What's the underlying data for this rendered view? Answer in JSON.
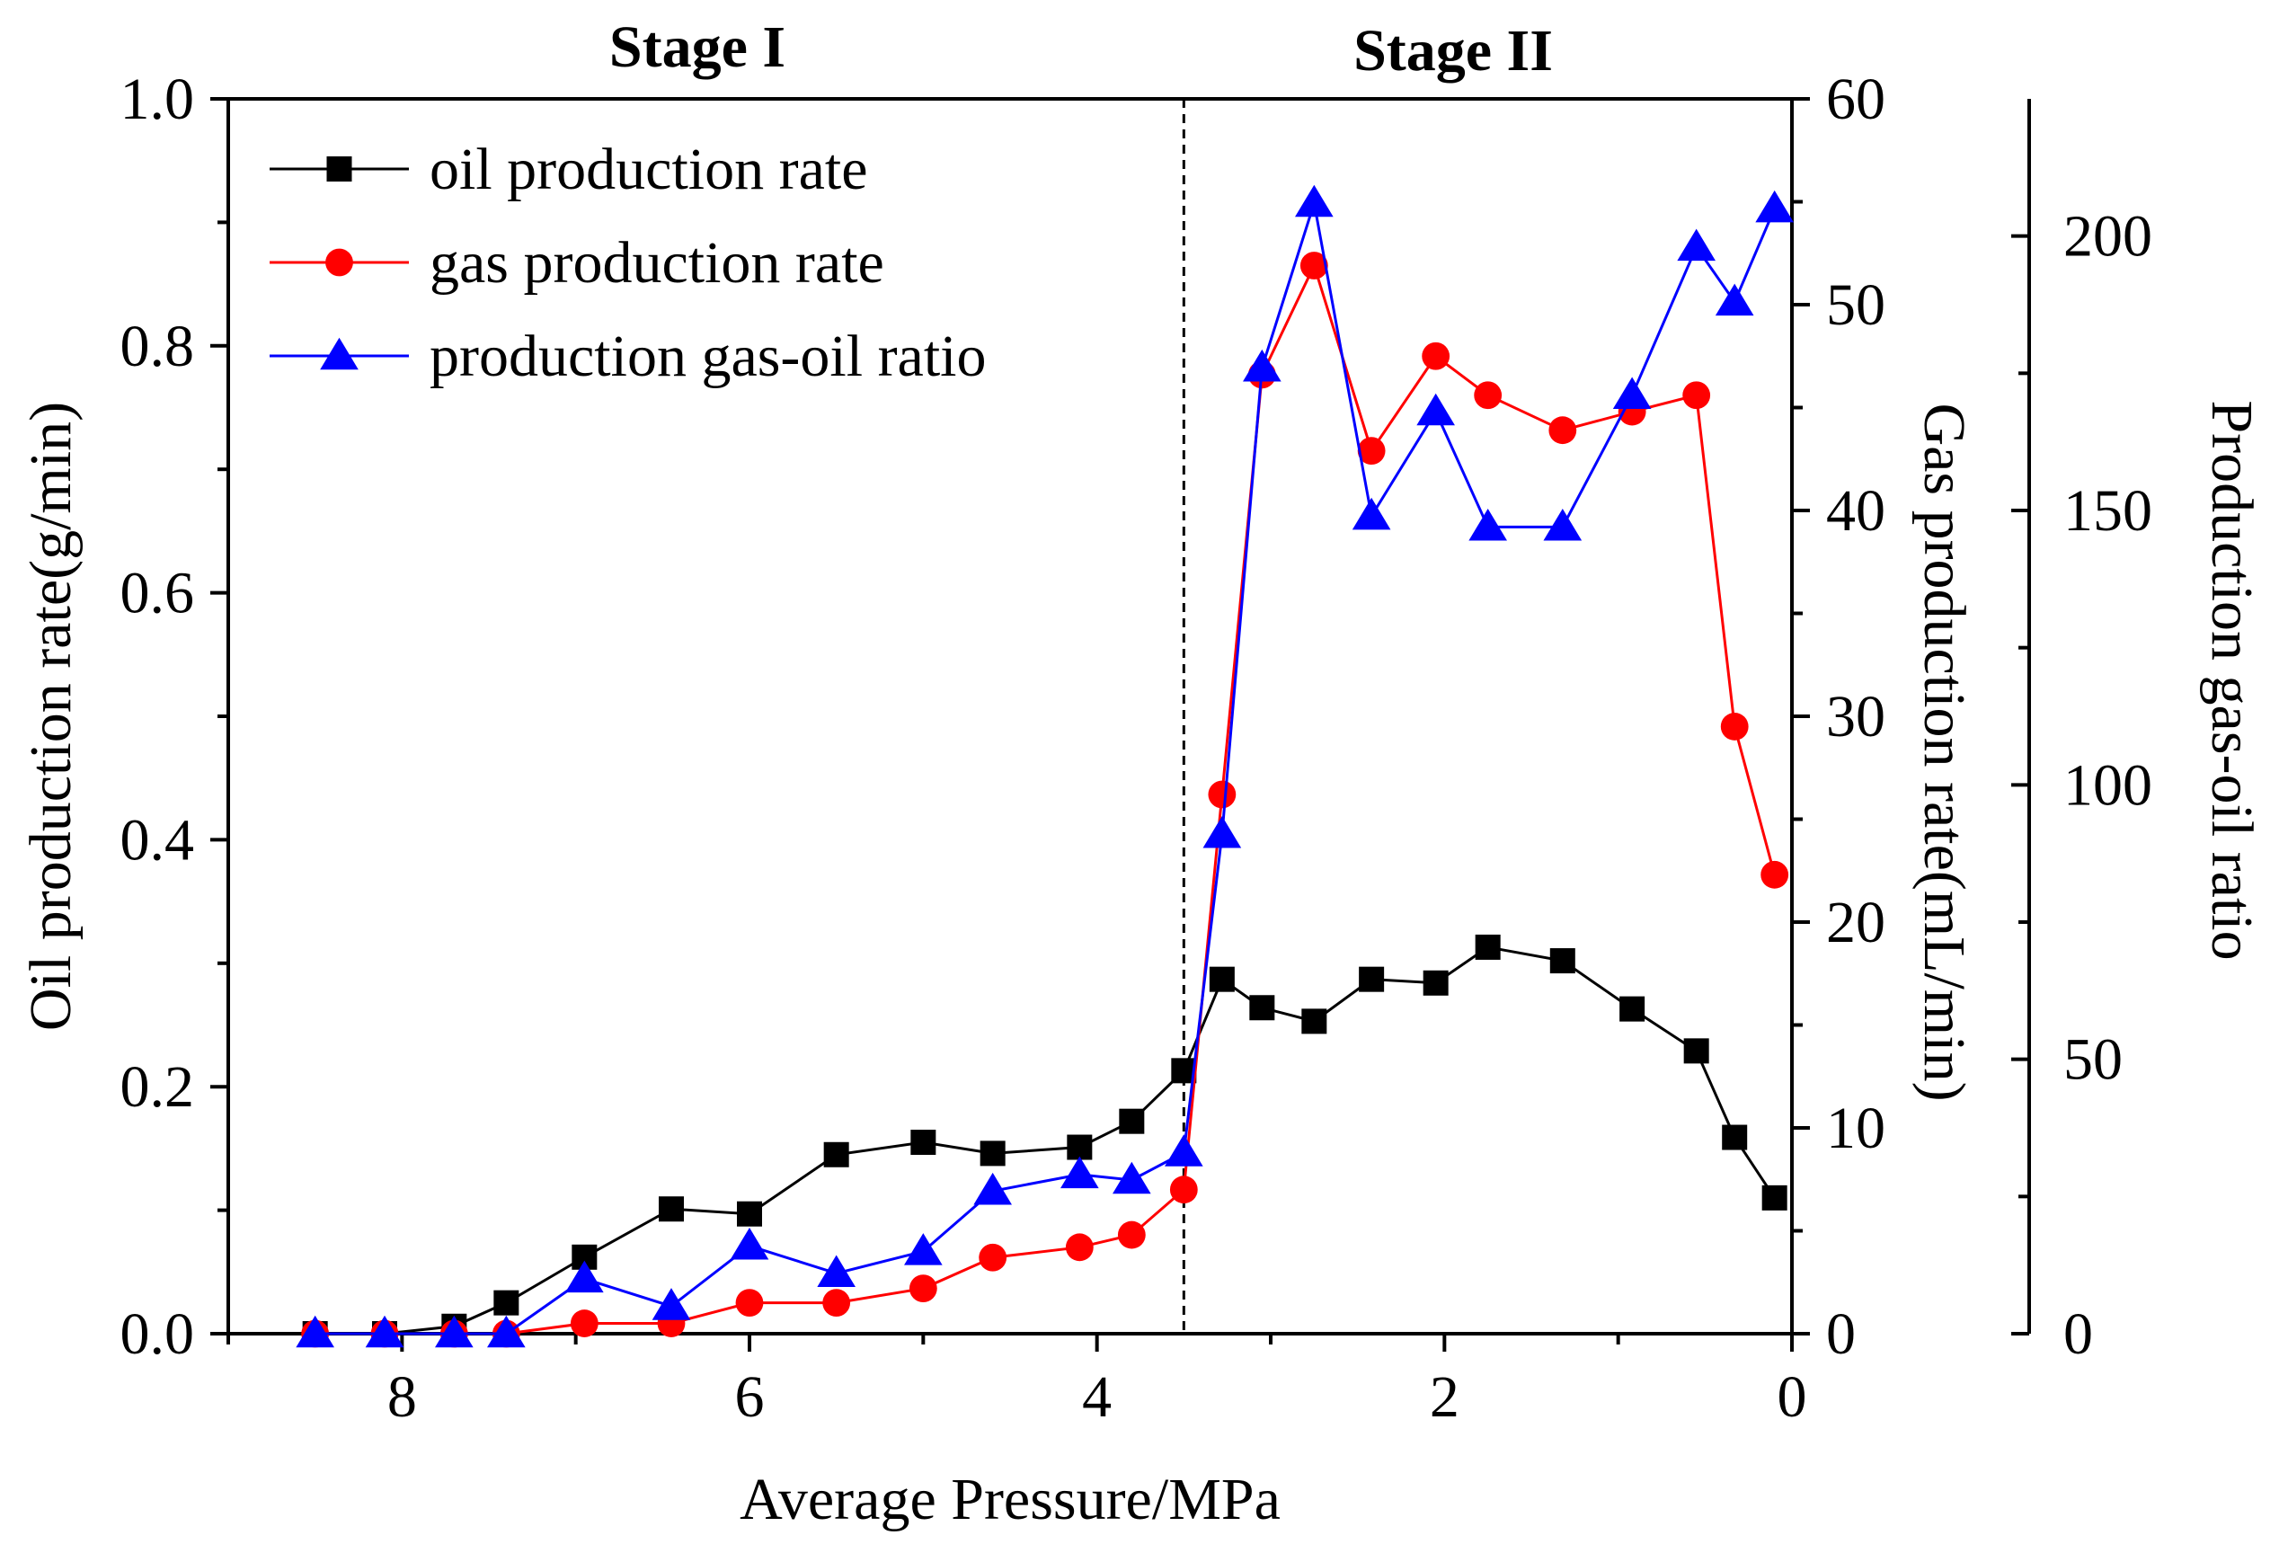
{
  "chart_data": {
    "type": "line",
    "stage_labels": [
      "Stage I",
      "Stage II"
    ],
    "stage_divider_x": 3.5,
    "xlabel": "Average Pressure/MPa",
    "x_reversed": true,
    "xlim": [
      9,
      0
    ],
    "x_ticks": [
      8,
      6,
      4,
      2,
      0
    ],
    "axes": {
      "left": {
        "label": "Oil production rate(g/min)",
        "lim": [
          0.0,
          1.0
        ],
        "ticks": [
          "0.0",
          "0.2",
          "0.4",
          "0.6",
          "0.8",
          "1.0"
        ]
      },
      "right_inner": {
        "label": "Gas production rate(mL/min)",
        "lim": [
          0,
          60
        ],
        "ticks": [
          "0",
          "10",
          "20",
          "30",
          "40",
          "50",
          "60"
        ]
      },
      "right_outer": {
        "label": "Production gas-oil ratio",
        "lim": [
          0,
          225
        ],
        "ticks": [
          "0",
          "50",
          "100",
          "150",
          "200"
        ]
      }
    },
    "legend_position": "top-left",
    "series": [
      {
        "name": "oil production rate",
        "axis": "left",
        "color": "#000000",
        "marker": "square",
        "x": [
          8.5,
          8.1,
          7.7,
          7.4,
          6.95,
          6.45,
          6.0,
          5.5,
          5.0,
          4.6,
          4.1,
          3.8,
          3.5,
          3.28,
          3.05,
          2.75,
          2.42,
          2.05,
          1.75,
          1.32,
          0.92,
          0.55,
          0.33,
          0.1
        ],
        "y": [
          0.0,
          0.0,
          0.006,
          0.025,
          0.062,
          0.101,
          0.097,
          0.145,
          0.155,
          0.146,
          0.151,
          0.172,
          0.213,
          0.287,
          0.264,
          0.253,
          0.287,
          0.284,
          0.313,
          0.302,
          0.263,
          0.229,
          0.159,
          0.11
        ]
      },
      {
        "name": "gas production rate",
        "axis": "right_inner",
        "color": "#ff0000",
        "marker": "circle",
        "x": [
          8.5,
          8.1,
          7.7,
          7.4,
          6.95,
          6.45,
          6.0,
          5.5,
          5.0,
          4.6,
          4.1,
          3.8,
          3.5,
          3.28,
          3.05,
          2.75,
          2.42,
          2.05,
          1.75,
          1.32,
          0.92,
          0.55,
          0.33,
          0.1
        ],
        "y": [
          0.0,
          0.0,
          0.0,
          0.0,
          0.5,
          0.5,
          1.5,
          1.5,
          2.2,
          3.7,
          4.2,
          4.8,
          7.0,
          26.2,
          46.6,
          51.9,
          42.9,
          47.5,
          45.6,
          43.9,
          44.8,
          45.6,
          29.5,
          22.3
        ]
      },
      {
        "name": "production gas-oil ratio",
        "axis": "right_outer",
        "color": "#0000ff",
        "marker": "triangle",
        "x": [
          8.5,
          8.1,
          7.7,
          7.4,
          6.95,
          6.45,
          6.0,
          5.5,
          5.0,
          4.6,
          4.1,
          3.8,
          3.5,
          3.28,
          3.05,
          2.75,
          2.42,
          2.05,
          1.75,
          1.32,
          0.92,
          0.55,
          0.33,
          0.1
        ],
        "y": [
          0,
          0,
          0,
          0,
          10,
          5,
          16,
          11,
          15,
          26,
          29,
          28,
          33,
          91,
          176,
          206,
          149,
          168,
          147,
          147,
          171,
          198,
          188,
          205
        ]
      }
    ]
  }
}
